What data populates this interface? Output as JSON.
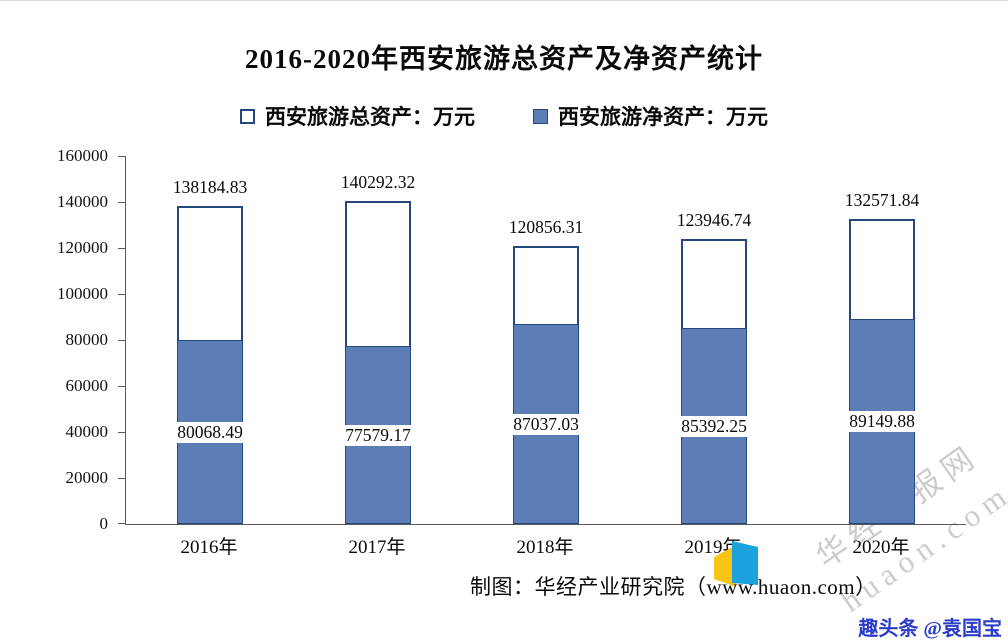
{
  "title": "2016-2020年西安旅游总资产及净资产统计",
  "legend": [
    {
      "label": "西安旅游总资产：万元",
      "swatch": "outline"
    },
    {
      "label": "西安旅游净资产：万元",
      "swatch": "filled"
    }
  ],
  "chart_data": {
    "type": "bar",
    "title": "2016-2020年西安旅游总资产及净资产统计",
    "categories": [
      "2016年",
      "2017年",
      "2018年",
      "2019年",
      "2020年"
    ],
    "series": [
      {
        "name": "西安旅游总资产：万元",
        "style": "outline",
        "values": [
          138184.83,
          140292.32,
          120856.31,
          123946.74,
          132571.84
        ]
      },
      {
        "name": "西安旅游净资产：万元",
        "style": "filled",
        "values": [
          80068.49,
          77579.17,
          87037.03,
          85392.25,
          89149.88
        ]
      }
    ],
    "labels": {
      "total": [
        "138184.83",
        "140292.32",
        "120856.31",
        "123946.74",
        "132571.84"
      ],
      "net": [
        "80068.49",
        "77579.17",
        "87037.03",
        "85392.25",
        "89149.88"
      ]
    },
    "ylim": [
      0,
      160000
    ],
    "ytick_step": 20000,
    "yticks": [
      "0",
      "20000",
      "40000",
      "60000",
      "80000",
      "100000",
      "120000",
      "140000",
      "160000"
    ],
    "xlabel": "",
    "ylabel": "",
    "grid": false,
    "legend_position": "top"
  },
  "colors": {
    "bar_fill": "#5c7db5",
    "bar_outline": "#24477d",
    "axis": "#595959",
    "watermark": "#cccccc",
    "footer_blue": "#2b3cc9",
    "logo_blue": "#1aa3dd",
    "logo_yellow": "#f6c516"
  },
  "footer": {
    "caption": "制图：华经产业研究院（www.huaon.com）",
    "watermark_line1": "华经情报网",
    "watermark_line2": "huaon.com",
    "corner_text": "趣头条 @袁国宝"
  }
}
